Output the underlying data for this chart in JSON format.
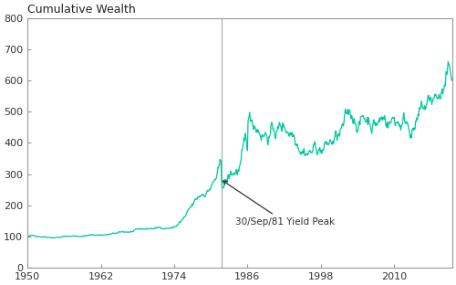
{
  "title": "Cumulative Wealth",
  "xlim": [
    1950,
    2019.5
  ],
  "ylim": [
    0,
    800
  ],
  "yticks": [
    0,
    100,
    200,
    300,
    400,
    500,
    600,
    700,
    800
  ],
  "xticks": [
    1950,
    1962,
    1974,
    1986,
    1998,
    2010
  ],
  "line_color": "#00c89e",
  "vline_x": 1981.75,
  "vline_color": "#b0b0b0",
  "annotation_text": "30/Sep/81 Yield Peak",
  "bg_color": "#ffffff",
  "spine_color": "#999999",
  "start_year": 1950,
  "end_year": 2019,
  "seed": 42,
  "figsize": [
    5.0,
    3.12
  ],
  "dpi": 100
}
